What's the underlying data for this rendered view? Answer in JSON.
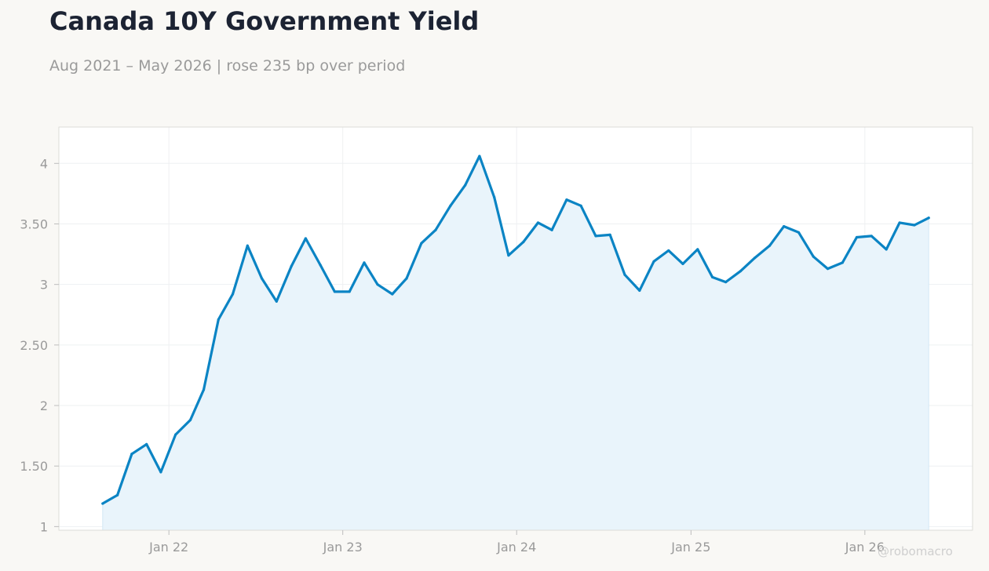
{
  "header": {
    "title": "Canada 10Y Government Yield",
    "subtitle": "Aug 2021 – May 2026 | rose 235 bp over period"
  },
  "watermark": "@robomacro",
  "colors": {
    "line": "#0b84c4",
    "fill": "#e9f4fb",
    "grid": "#eef0f2",
    "frame": "#dcdcd8"
  },
  "chart_data": {
    "type": "area",
    "title": "Canada 10Y Government Yield",
    "subtitle": "Aug 2021 – May 2026 | rose 235 bp over period",
    "xlabel": "",
    "ylabel": "",
    "grid": true,
    "xlim": [
      "2021-05-15",
      "2026-08-15"
    ],
    "ylim": [
      0.97,
      4.3
    ],
    "y_ticks": [
      1,
      1.5,
      2,
      2.5,
      3,
      3.5,
      4
    ],
    "y_tick_labels": [
      "1",
      "1.50",
      "2",
      "2.50",
      "3",
      "3.50",
      "4"
    ],
    "x_ticks": [
      "2022-01-01",
      "2023-01-01",
      "2024-01-01",
      "2025-01-01",
      "2026-01-01"
    ],
    "x_tick_labels": [
      "Jan 22",
      "Jan 23",
      "Jan 24",
      "Jan 25",
      "Jan 26"
    ],
    "series": [
      {
        "x": [
          "2021-08",
          "2021-09",
          "2021-10",
          "2021-11",
          "2021-12",
          "2022-01",
          "2022-02",
          "2022-03",
          "2022-04",
          "2022-05",
          "2022-06",
          "2022-07",
          "2022-08",
          "2022-09",
          "2022-10",
          "2022-11",
          "2022-12",
          "2023-01",
          "2023-02",
          "2023-03",
          "2023-04",
          "2023-05",
          "2023-06",
          "2023-07",
          "2023-08",
          "2023-09",
          "2023-10",
          "2023-11",
          "2023-12",
          "2024-01",
          "2024-02",
          "2024-03",
          "2024-04",
          "2024-05",
          "2024-06",
          "2024-07",
          "2024-08",
          "2024-09",
          "2024-10",
          "2024-11",
          "2024-12",
          "2025-01",
          "2025-02",
          "2025-03",
          "2025-04",
          "2025-05",
          "2025-06",
          "2025-07",
          "2025-08",
          "2025-09",
          "2025-10",
          "2025-11",
          "2025-12",
          "2026-01",
          "2026-02",
          "2026-03",
          "2026-04",
          "2026-05"
        ],
        "values": [
          1.19,
          1.26,
          1.6,
          1.68,
          1.45,
          1.76,
          1.88,
          2.13,
          2.71,
          2.92,
          3.32,
          3.05,
          2.86,
          3.15,
          3.38,
          3.16,
          2.94,
          2.94,
          3.18,
          3.0,
          2.92,
          3.05,
          3.34,
          3.45,
          3.65,
          3.82,
          4.06,
          3.72,
          3.24,
          3.35,
          3.51,
          3.45,
          3.7,
          3.65,
          3.4,
          3.41,
          3.08,
          2.95,
          3.19,
          3.28,
          3.17,
          3.29,
          3.06,
          3.02,
          3.11,
          3.22,
          3.32,
          3.48,
          3.43,
          3.23,
          3.13,
          3.18,
          3.39,
          3.4,
          3.29,
          3.51,
          3.49,
          3.55
        ]
      }
    ]
  }
}
